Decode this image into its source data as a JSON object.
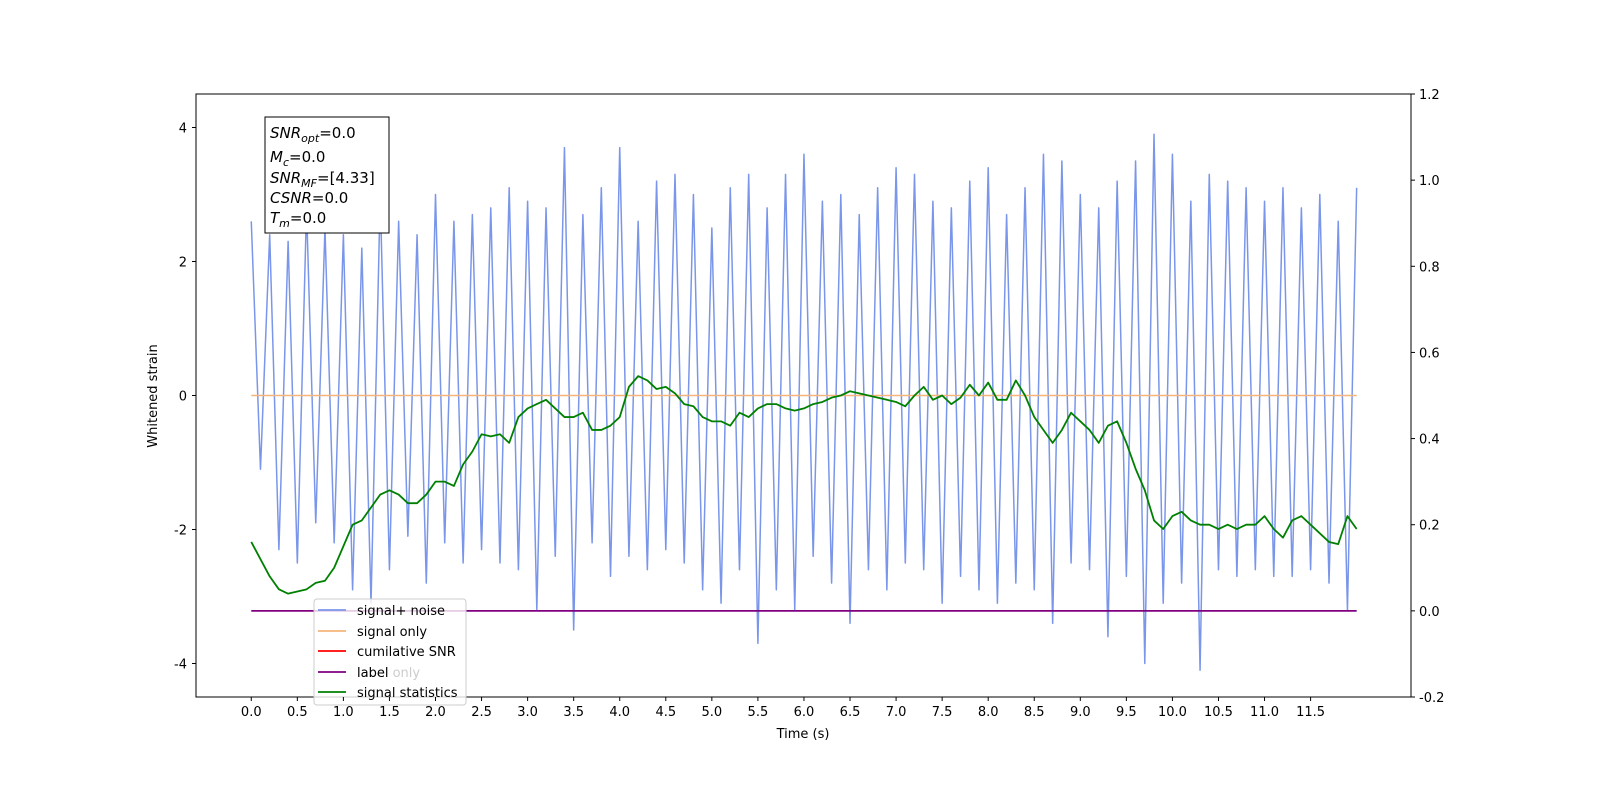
{
  "chart_data": {
    "type": "line",
    "xlabel": "Time (s)",
    "ylabel": "Whitened strain",
    "xlim": [
      -0.6,
      12.59
    ],
    "ylim": [
      -4.5,
      4.5
    ],
    "y2lim": [
      -0.2,
      1.2
    ],
    "xticks": [
      {
        "value": 0,
        "label": "0.0"
      },
      0.5,
      {
        "value": 1,
        "label": "1.0"
      },
      1.5,
      {
        "value": 2,
        "label": "2.0"
      },
      2.5,
      {
        "value": 3,
        "label": "3.0"
      },
      3.5,
      {
        "value": 4,
        "label": "4.0"
      },
      4.5,
      {
        "value": 5,
        "label": "5.0"
      },
      5.5,
      {
        "value": 6,
        "label": "6.0"
      },
      6.5,
      {
        "value": 7,
        "label": "7.0"
      },
      7.5,
      {
        "value": 8,
        "label": "8.0"
      },
      8.5,
      {
        "value": 9,
        "label": "9.0"
      },
      9.5,
      {
        "value": 10,
        "label": "10.0"
      },
      10.5,
      {
        "value": 11,
        "label": "11.0"
      },
      11.5
    ],
    "yticks": [
      -4,
      -2,
      0,
      2,
      4
    ],
    "y2ticks": [
      -0.2,
      {
        "value": 0,
        "label": "0.0"
      },
      0.2,
      0.4,
      0.6,
      0.8,
      {
        "value": 1,
        "label": "1.0"
      },
      1.2
    ],
    "x": [
      0,
      0.1,
      0.2,
      0.3,
      0.4,
      0.5,
      0.6,
      0.7,
      0.8,
      0.9,
      1,
      1.1,
      1.2,
      1.3,
      1.4,
      1.5,
      1.6,
      1.7,
      1.8,
      1.9,
      2,
      2.1,
      2.2,
      2.3,
      2.4,
      2.5,
      2.6,
      2.7,
      2.8,
      2.9,
      3,
      3.1,
      3.2,
      3.3,
      3.4,
      3.5,
      3.6,
      3.7,
      3.8,
      3.9,
      4,
      4.1,
      4.2,
      4.3,
      4.4,
      4.5,
      4.6,
      4.7,
      4.8,
      4.9,
      5,
      5.1,
      5.2,
      5.3,
      5.4,
      5.5,
      5.6,
      5.7,
      5.8,
      5.9,
      6,
      6.1,
      6.2,
      6.3,
      6.4,
      6.5,
      6.6,
      6.7,
      6.8,
      6.9,
      7,
      7.1,
      7.2,
      7.3,
      7.4,
      7.5,
      7.6,
      7.7,
      7.8,
      7.9,
      8,
      8.1,
      8.2,
      8.3,
      8.4,
      8.5,
      8.6,
      8.7,
      8.8,
      8.9,
      9,
      9.1,
      9.2,
      9.3,
      9.4,
      9.5,
      9.6,
      9.7,
      9.8,
      9.9,
      10,
      10.1,
      10.2,
      10.3,
      10.4,
      10.5,
      10.6,
      10.7,
      10.8,
      10.9,
      11,
      11.1,
      11.2,
      11.3,
      11.4,
      11.5,
      11.6,
      11.7,
      11.8,
      11.9,
      12
    ],
    "series": [
      {
        "name": "signal+ noise",
        "color": "#7a96ea",
        "values": [
          2.6,
          -1.1,
          2.4,
          -2.3,
          2.3,
          -2.5,
          2.8,
          -1.9,
          2.5,
          -2.2,
          2.4,
          -2.9,
          2.2,
          -3.1,
          3.0,
          -2.6,
          2.6,
          -2.1,
          2.4,
          -2.8,
          3.0,
          -2.2,
          2.6,
          -2.5,
          2.7,
          -2.3,
          2.8,
          -2.5,
          3.1,
          -2.6,
          2.9,
          -3.2,
          2.8,
          -2.4,
          3.7,
          -3.5,
          2.7,
          -2.2,
          3.1,
          -2.7,
          3.7,
          -2.4,
          2.6,
          -2.6,
          3.2,
          -2.3,
          3.3,
          -2.5,
          3.0,
          -2.9,
          2.5,
          -3.1,
          3.1,
          -2.6,
          3.3,
          -3.7,
          2.8,
          -2.9,
          3.3,
          -3.2,
          3.6,
          -2.4,
          2.9,
          -2.8,
          3.0,
          -3.4,
          2.7,
          -2.6,
          3.1,
          -2.9,
          3.4,
          -2.5,
          3.3,
          -2.6,
          2.9,
          -3.1,
          2.8,
          -2.7,
          3.2,
          -2.9,
          3.4,
          -3.1,
          2.7,
          -2.8,
          3.1,
          -2.9,
          3.6,
          -3.4,
          3.5,
          -2.5,
          3.0,
          -2.6,
          2.8,
          -3.6,
          3.2,
          -2.7,
          3.5,
          -4.0,
          3.9,
          -3.1,
          3.6,
          -2.8,
          2.9,
          -4.1,
          3.3,
          -2.6,
          3.2,
          -2.7,
          3.1,
          -2.6,
          2.9,
          -2.7,
          3.1,
          -2.7,
          2.8,
          -2.6,
          3.0,
          -2.8,
          2.6,
          -3.2,
          3.1
        ]
      },
      {
        "name": "signal only",
        "color": "#f5b47a",
        "values": [
          0,
          0,
          0,
          0,
          0,
          0,
          0,
          0,
          0,
          0,
          0,
          0,
          0,
          0,
          0,
          0,
          0,
          0,
          0,
          0,
          0,
          0,
          0,
          0,
          0,
          0,
          0,
          0,
          0,
          0,
          0,
          0,
          0,
          0,
          0,
          0,
          0,
          0,
          0,
          0,
          0,
          0,
          0,
          0,
          0,
          0,
          0,
          0,
          0,
          0,
          0,
          0,
          0,
          0,
          0,
          0,
          0,
          0,
          0,
          0,
          0,
          0,
          0,
          0,
          0,
          0,
          0,
          0,
          0,
          0,
          0,
          0,
          0,
          0,
          0,
          0,
          0,
          0,
          0,
          0,
          0,
          0,
          0,
          0,
          0,
          0,
          0,
          0,
          0,
          0,
          0,
          0,
          0,
          0,
          0,
          0,
          0,
          0,
          0,
          0,
          0,
          0,
          0,
          0,
          0,
          0,
          0,
          0,
          0,
          0,
          0,
          0,
          0,
          0,
          0,
          0,
          0,
          0,
          0,
          0,
          0
        ]
      },
      {
        "name": "cumilative SNR",
        "color": "#ff0000",
        "axis": "y2",
        "values": [
          null,
          null,
          null,
          null,
          null,
          null,
          null,
          null,
          null,
          null,
          null,
          null,
          null,
          null,
          null,
          null,
          null,
          null,
          null,
          null,
          null,
          null,
          null,
          null,
          null,
          null,
          null,
          null,
          null,
          null,
          null,
          null,
          null,
          null,
          null,
          null,
          null,
          null,
          null,
          null,
          null,
          null,
          null,
          null,
          null,
          null,
          null,
          null,
          null,
          null,
          null,
          null,
          null,
          null,
          null,
          null,
          null,
          null,
          null,
          null,
          null,
          null,
          null,
          null,
          null,
          null,
          null,
          null,
          null,
          null,
          null,
          null,
          null,
          null,
          null,
          null,
          null,
          null,
          null,
          null,
          null,
          null,
          null,
          null,
          null,
          null,
          null,
          null,
          null,
          null,
          null,
          null,
          null,
          null,
          null,
          null,
          null,
          null,
          null,
          null,
          null,
          null,
          null,
          null,
          null,
          null,
          null,
          null,
          null,
          null,
          null,
          null,
          null,
          null,
          null,
          null,
          null,
          null,
          null,
          null,
          null
        ]
      },
      {
        "name": "label",
        "color": "#800080",
        "axis": "y2",
        "values": [
          0,
          0,
          0,
          0,
          0,
          0,
          0,
          0,
          0,
          0,
          0,
          0,
          0,
          0,
          0,
          0,
          0,
          0,
          0,
          0,
          0,
          0,
          0,
          0,
          0,
          0,
          0,
          0,
          0,
          0,
          0,
          0,
          0,
          0,
          0,
          0,
          0,
          0,
          0,
          0,
          0,
          0,
          0,
          0,
          0,
          0,
          0,
          0,
          0,
          0,
          0,
          0,
          0,
          0,
          0,
          0,
          0,
          0,
          0,
          0,
          0,
          0,
          0,
          0,
          0,
          0,
          0,
          0,
          0,
          0,
          0,
          0,
          0,
          0,
          0,
          0,
          0,
          0,
          0,
          0,
          0,
          0,
          0,
          0,
          0,
          0,
          0,
          0,
          0,
          0,
          0,
          0,
          0,
          0,
          0,
          0,
          0,
          0,
          0,
          0,
          0,
          0,
          0,
          0,
          0,
          0,
          0,
          0,
          0,
          0,
          0,
          0,
          0,
          0,
          0,
          0,
          0,
          0,
          0,
          0,
          0
        ]
      },
      {
        "name": "signal statistics",
        "color": "#008000",
        "axis": "y2",
        "values": [
          0.16,
          0.12,
          0.08,
          0.05,
          0.04,
          0.045,
          0.05,
          0.065,
          0.07,
          0.1,
          0.15,
          0.2,
          0.21,
          0.24,
          0.27,
          0.28,
          0.27,
          0.25,
          0.25,
          0.27,
          0.3,
          0.3,
          0.29,
          0.34,
          0.37,
          0.41,
          0.405,
          0.41,
          0.39,
          0.45,
          0.47,
          0.48,
          0.49,
          0.47,
          0.45,
          0.45,
          0.46,
          0.42,
          0.42,
          0.43,
          0.45,
          0.52,
          0.545,
          0.535,
          0.515,
          0.52,
          0.505,
          0.48,
          0.475,
          0.45,
          0.44,
          0.44,
          0.43,
          0.46,
          0.45,
          0.47,
          0.48,
          0.48,
          0.47,
          0.465,
          0.47,
          0.48,
          0.485,
          0.495,
          0.5,
          0.51,
          0.505,
          0.5,
          0.495,
          0.49,
          0.485,
          0.475,
          0.5,
          0.52,
          0.49,
          0.5,
          0.48,
          0.495,
          0.525,
          0.5,
          0.53,
          0.49,
          0.49,
          0.535,
          0.5,
          0.45,
          0.42,
          0.39,
          0.42,
          0.46,
          0.44,
          0.42,
          0.39,
          0.43,
          0.44,
          0.39,
          0.33,
          0.28,
          0.21,
          0.19,
          0.22,
          0.23,
          0.21,
          0.2,
          0.2,
          0.19,
          0.2,
          0.19,
          0.2,
          0.2,
          0.22,
          0.19,
          0.17,
          0.21,
          0.22,
          0.2,
          0.18,
          0.16,
          0.155,
          0.22,
          0.19
        ]
      }
    ],
    "legend_hidden_entry": "label only",
    "annotations": [
      {
        "name": "SNR",
        "sub": "opt",
        "value": "=0.0"
      },
      {
        "name": "M",
        "sub": "c",
        "value": "=0.0"
      },
      {
        "name": "SNR",
        "sub": "MF",
        "value": "=[4.33]"
      },
      {
        "name": "CSNR",
        "value": "=0.0"
      },
      {
        "name": "T",
        "sub": "m",
        "value": "=0.0"
      }
    ]
  }
}
